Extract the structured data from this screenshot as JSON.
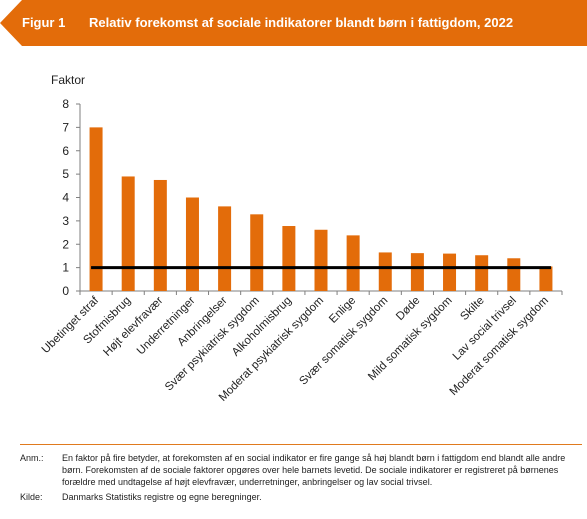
{
  "header": {
    "figure_label": "Figur 1",
    "title": "Relativ forekomst af sociale indikatorer blandt børn i fattigdom, 2022"
  },
  "colors": {
    "accent": "#e36c0a",
    "bar": "#e36c0a",
    "reference_line": "#000000",
    "text": "#222222"
  },
  "chart_data": {
    "type": "bar",
    "title": "Relativ forekomst af sociale indikatorer blandt børn i fattigdom, 2022",
    "ylabel": "Faktor",
    "xlabel": "",
    "ylim": [
      0,
      8
    ],
    "yticks": [
      0,
      1,
      2,
      3,
      4,
      5,
      6,
      7,
      8
    ],
    "grid": false,
    "legend": "none",
    "categories": [
      "Ubetinget straf",
      "Stofmisbrug",
      "Højt elevfravær",
      "Underretninger",
      "Anbringelser",
      "Svær psykiatrisk sygdom",
      "Alkoholmisbrug",
      "Moderat psykiatrisk sygdom",
      "Enlige",
      "Svær somatisk sygdom",
      "Døde",
      "Mild somatisk sygdom",
      "Skilte",
      "Lav social trivsel",
      "Moderat somatisk sygdom"
    ],
    "values": [
      7.0,
      4.9,
      4.75,
      4.0,
      3.62,
      3.28,
      2.78,
      2.62,
      2.38,
      1.65,
      1.62,
      1.6,
      1.53,
      1.4,
      1.05
    ],
    "reference_line": {
      "y": 1
    }
  },
  "notes": {
    "anm_label": "Anm.:",
    "anm_text": "En faktor på fire betyder, at forekomsten af en social indikator er fire gange så høj blandt børn i fattigdom end blandt alle andre børn.  Forekomsten af de sociale faktorer opgøres over hele barnets levetid. De sociale indikatorer er registreret på børnenes forældre med undtagelse af højt elevfravær, underretninger, anbringelser og lav social trivsel.",
    "kilde_label": "Kilde:",
    "kilde_text": "Danmarks Statistiks registre og egne beregninger."
  }
}
